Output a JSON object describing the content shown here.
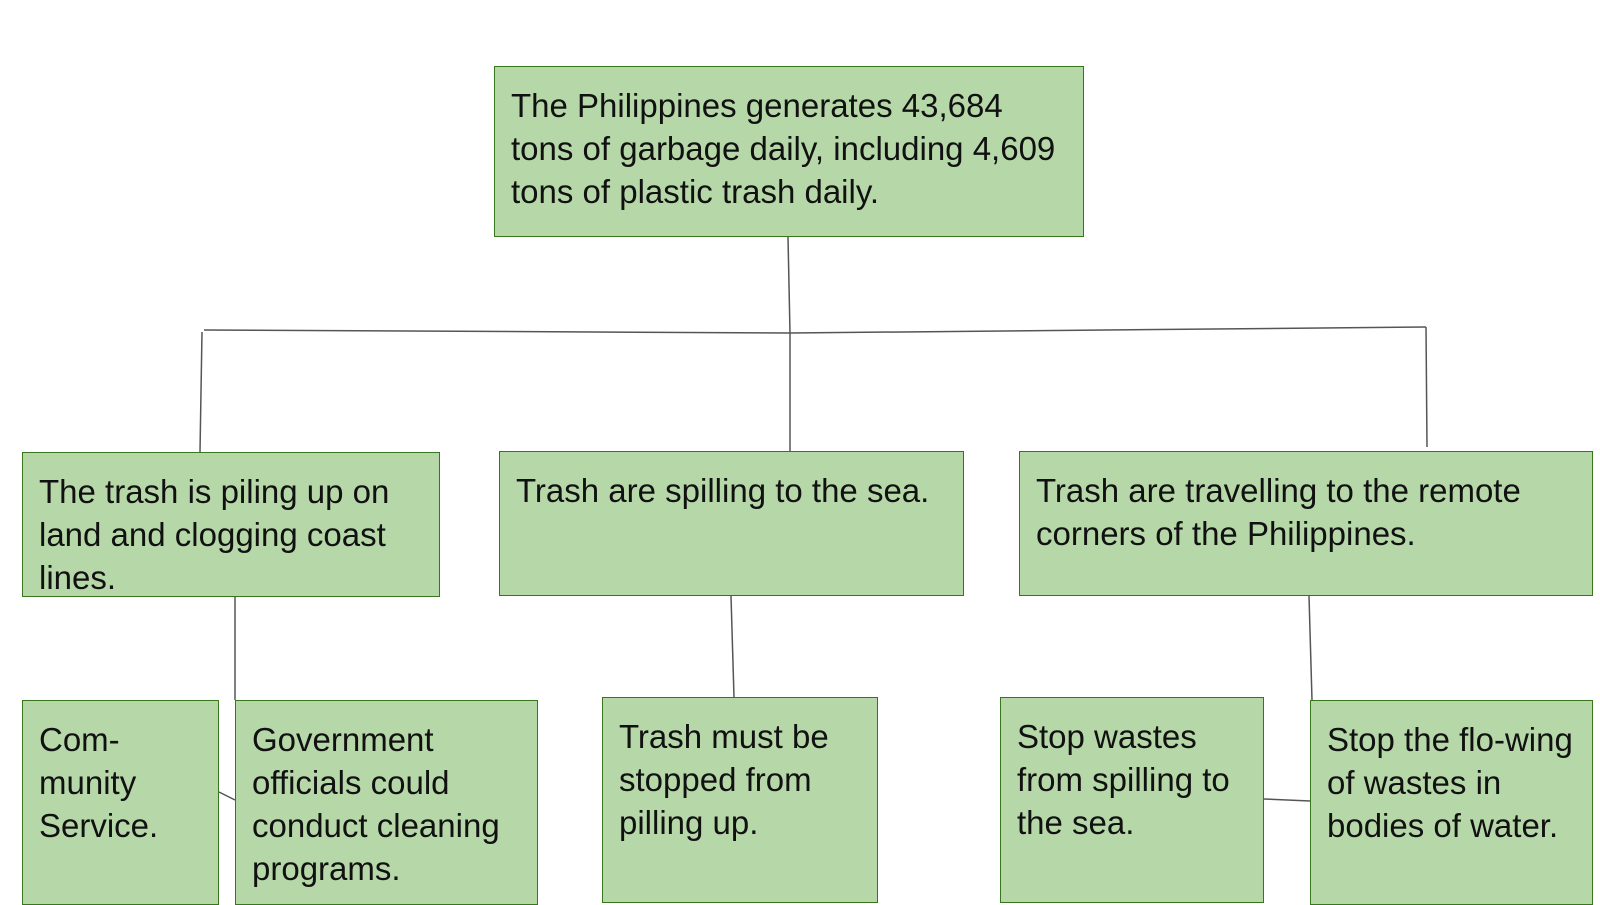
{
  "nodes": {
    "root": "The Philippines generates 43,684 tons of garbage daily, including 4,609 tons of plastic trash daily.",
    "land": "The trash is piling up on land and clogging coast lines.",
    "sea": "Trash are spilling to the sea.",
    "remote": "Trash are travelling to the remote corners of the Philippines.",
    "community": "Com-munity Service.",
    "government": "Government officials could conduct cleaning programs.",
    "stop_piling": "Trash must be stopped from pilling up.",
    "stop_spilling": "Stop wastes from spilling to the sea.",
    "stop_flowing": "Stop the flo-wing of wastes in bodies of water."
  },
  "colors": {
    "box_fill": "#b6d7a8",
    "box_border": "#38761d",
    "connector": "#555555",
    "text": "#111111"
  }
}
